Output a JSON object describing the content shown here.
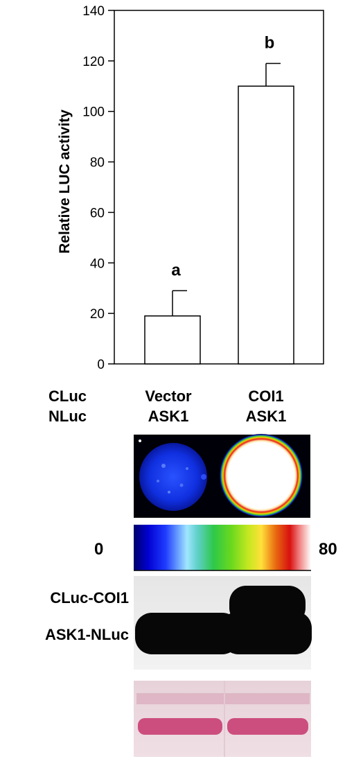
{
  "chart_data": {
    "type": "bar",
    "ylabel": "Relative LUC activity",
    "ylim": [
      0,
      140
    ],
    "yticks": [
      0,
      20,
      40,
      60,
      80,
      100,
      120,
      140
    ],
    "categories": [
      "Vector ASK1",
      "COI1 ASK1"
    ],
    "values": [
      19,
      110
    ],
    "errors": [
      10,
      9
    ],
    "significance_letters": [
      "a",
      "b"
    ],
    "bar_color": "#ffffff",
    "grid": false
  },
  "sample_table": {
    "row_labels": [
      "CLuc",
      "NLuc"
    ],
    "columns": [
      {
        "cluc": "Vector",
        "nluc": "ASK1"
      },
      {
        "cluc": "COI1",
        "nluc": "ASK1"
      }
    ]
  },
  "colorbar": {
    "min_label": "0",
    "max_label": "80"
  },
  "western_blot": {
    "band_labels": [
      "CLuc-COI1",
      "ASK1-NLuc"
    ]
  }
}
